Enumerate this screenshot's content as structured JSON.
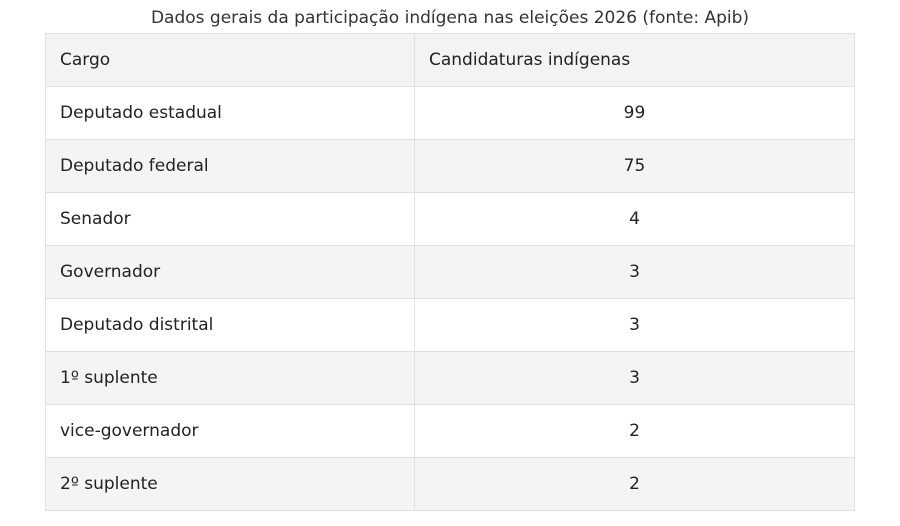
{
  "table": {
    "title": "Dados gerais da participação indígena nas eleições 2026 (fonte: Apib)",
    "header": [
      "Cargo",
      "Candidaturas indígenas"
    ],
    "rows": [
      [
        "Deputado estadual",
        99
      ],
      [
        "Deputado federal",
        75
      ],
      [
        "Senador",
        4
      ],
      [
        "Governador",
        3
      ],
      [
        "Deputado distrital",
        3
      ],
      [
        "1º suplente",
        3
      ],
      [
        "vice-governador",
        2
      ],
      [
        "2º suplente",
        2
      ]
    ]
  }
}
